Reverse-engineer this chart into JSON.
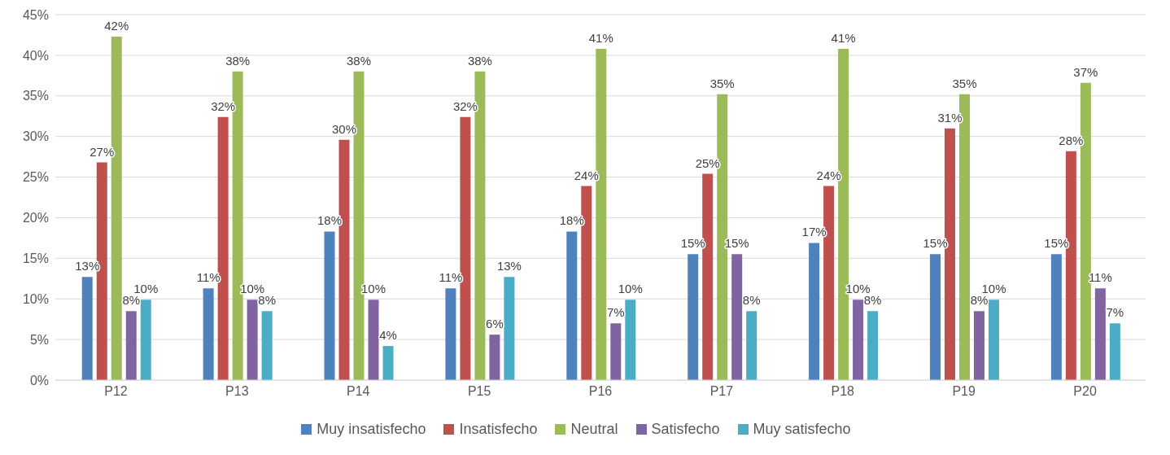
{
  "chart_data": {
    "type": "bar",
    "categories": [
      "P12",
      "P13",
      "P14",
      "P15",
      "P16",
      "P17",
      "P18",
      "P19",
      "P20"
    ],
    "series": [
      {
        "name": "Muy insatisfecho",
        "color": "#4f81bd",
        "values": [
          12.7,
          11.3,
          18.3,
          11.3,
          18.3,
          15.5,
          16.9,
          15.5,
          15.5
        ],
        "value_labels": [
          "13%",
          "11%",
          "18%",
          "11%",
          "18%",
          "15%",
          "17%",
          "15%",
          "15%"
        ]
      },
      {
        "name": "Insatisfecho",
        "color": "#c0504d",
        "values": [
          26.8,
          32.4,
          29.6,
          32.4,
          23.9,
          25.4,
          23.9,
          31.0,
          28.2
        ],
        "value_labels": [
          "27%",
          "32%",
          "30%",
          "32%",
          "24%",
          "25%",
          "24%",
          "31%",
          "28%"
        ]
      },
      {
        "name": "Neutral",
        "color": "#9bbb59",
        "values": [
          42.3,
          38.0,
          38.0,
          38.0,
          40.8,
          35.2,
          40.8,
          35.2,
          36.6
        ],
        "value_labels": [
          "42%",
          "38%",
          "38%",
          "38%",
          "41%",
          "35%",
          "41%",
          "35%",
          "37%"
        ]
      },
      {
        "name": "Satisfecho",
        "color": "#8064a2",
        "values": [
          8.5,
          9.9,
          9.9,
          5.6,
          7.0,
          15.5,
          9.9,
          8.5,
          11.3
        ],
        "value_labels": [
          "8%",
          "10%",
          "10%",
          "6%",
          "7%",
          "15%",
          "10%",
          "8%",
          "11%"
        ]
      },
      {
        "name": "Muy satisfecho",
        "color": "#4bacc6",
        "values": [
          9.9,
          8.5,
          4.2,
          12.7,
          9.9,
          8.5,
          8.5,
          9.9,
          7.0
        ],
        "value_labels": [
          "10%",
          "8%",
          "4%",
          "13%",
          "10%",
          "8%",
          "8%",
          "10%",
          "7%"
        ]
      }
    ],
    "ylim": [
      0,
      45
    ],
    "yticks": [
      {
        "value": 0,
        "label": "0%"
      },
      {
        "value": 5,
        "label": "5%"
      },
      {
        "value": 10,
        "label": "10%"
      },
      {
        "value": 15,
        "label": "15%"
      },
      {
        "value": 20,
        "label": "20%"
      },
      {
        "value": 25,
        "label": "25%"
      },
      {
        "value": 30,
        "label": "30%"
      },
      {
        "value": 35,
        "label": "35%"
      },
      {
        "value": 40,
        "label": "40%"
      },
      {
        "value": 45,
        "label": "45%"
      }
    ],
    "grid": "y",
    "legend": "bottom"
  }
}
